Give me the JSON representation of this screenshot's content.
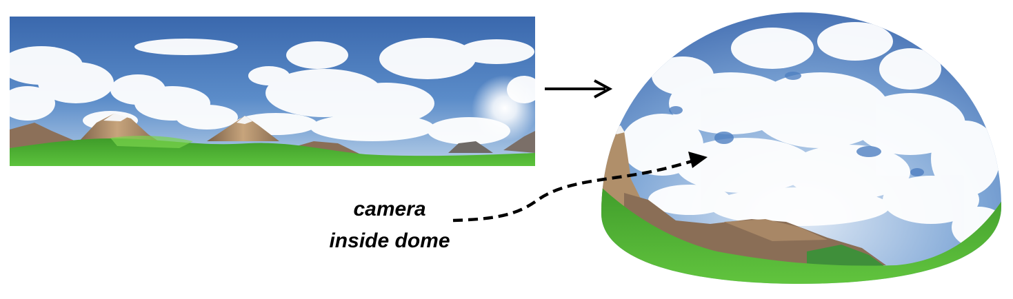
{
  "caption": {
    "line1": "camera",
    "line2": "inside dome"
  },
  "colors": {
    "sky_top": "#3f6db0",
    "sky_mid": "#5a8ac8",
    "sky_horizon": "#a9c6e6",
    "cloud": "#ffffff",
    "mountain": "#8a6f52",
    "mountain_light": "#c4a27a",
    "snow": "#f2f2f2",
    "grass": "#4caf32",
    "grass_light": "#7bd44d",
    "arrow": "#000000"
  },
  "icons": {
    "panorama": "panorama-image",
    "dome": "sky-dome",
    "mapping_arrow": "arrow-right-icon",
    "camera_ray": "dashed-arrow-icon"
  }
}
